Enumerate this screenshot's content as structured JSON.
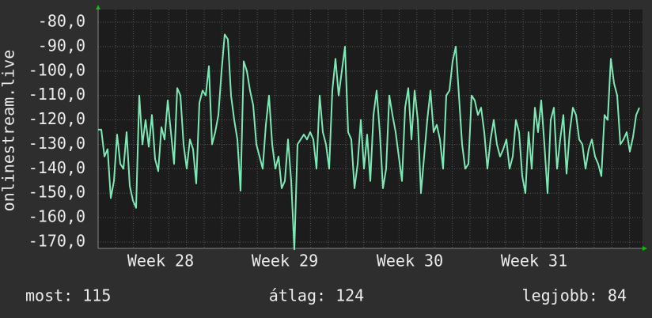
{
  "chart_data": {
    "type": "line",
    "y_label": "onlinestream.live",
    "series": [
      {
        "name": "onlinestream.live",
        "color": "#7ee8b4",
        "values": [
          -124,
          -124,
          -135,
          -132,
          -152,
          -145,
          -126,
          -138,
          -140,
          -125,
          -147,
          -153,
          -156,
          -110,
          -130,
          -120,
          -131,
          -118,
          -136,
          -141,
          -123,
          -128,
          -112,
          -125,
          -138,
          -107,
          -110,
          -130,
          -140,
          -128,
          -132,
          -146,
          -113,
          -108,
          -110,
          -98,
          -130,
          -125,
          -118,
          -100,
          -85,
          -87,
          -110,
          -120,
          -128,
          -149,
          -96,
          -100,
          -108,
          -114,
          -130,
          -135,
          -140,
          -122,
          -110,
          -130,
          -140,
          -135,
          -148,
          -145,
          -128,
          -145,
          -173,
          -130,
          -128,
          -126,
          -128,
          -125,
          -128,
          -140,
          -110,
          -125,
          -130,
          -140,
          -108,
          -95,
          -110,
          -100,
          -90,
          -125,
          -128,
          -148,
          -138,
          -120,
          -140,
          -126,
          -145,
          -118,
          -108,
          -125,
          -148,
          -140,
          -110,
          -118,
          -125,
          -135,
          -145,
          -115,
          -107,
          -128,
          -108,
          -120,
          -150,
          -135,
          -120,
          -108,
          -125,
          -122,
          -128,
          -140,
          -110,
          -108,
          -96,
          -90,
          -110,
          -130,
          -140,
          -138,
          -110,
          -112,
          -118,
          -115,
          -125,
          -140,
          -128,
          -120,
          -130,
          -135,
          -132,
          -128,
          -140,
          -135,
          -120,
          -125,
          -143,
          -150,
          -125,
          -140,
          -115,
          -125,
          -112,
          -130,
          -150,
          -120,
          -115,
          -140,
          -128,
          -118,
          -142,
          -125,
          -115,
          -118,
          -128,
          -130,
          -140,
          -132,
          -128,
          -135,
          -138,
          -143,
          -118,
          -120,
          -95,
          -105,
          -110,
          -130,
          -128,
          -125,
          -133,
          -127,
          -118,
          -115
        ]
      }
    ],
    "xlim": [
      0,
      171
    ],
    "xticks": [
      {
        "value": 19.75,
        "label": "Week 28"
      },
      {
        "value": 59,
        "label": "Week 29"
      },
      {
        "value": 98.5,
        "label": "Week 30"
      },
      {
        "value": 137.75,
        "label": "Week 31"
      }
    ],
    "ylim": [
      -172.6,
      -74.8
    ],
    "yticks": [
      {
        "value": -80,
        "label": "-80,0"
      },
      {
        "value": -90,
        "label": "-90,0"
      },
      {
        "value": -100,
        "label": "-100,0"
      },
      {
        "value": -110,
        "label": "-110,0"
      },
      {
        "value": -120,
        "label": "-120,0"
      },
      {
        "value": -130,
        "label": "-130,0"
      },
      {
        "value": -140,
        "label": "-140,0"
      },
      {
        "value": -150,
        "label": "-150,0"
      },
      {
        "value": -160,
        "label": "-160,0"
      },
      {
        "value": -170,
        "label": "-170,0"
      }
    ],
    "grid": true,
    "stats": [
      "most: 115",
      "átlag: 124",
      "legjobb: 84"
    ]
  }
}
